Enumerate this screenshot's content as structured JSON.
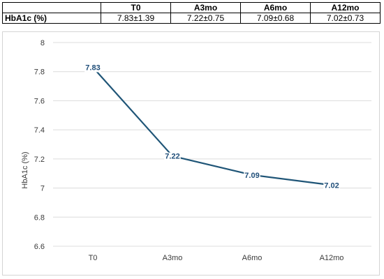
{
  "table": {
    "headers": [
      "",
      "T0",
      "A3mo",
      "A6mo",
      "A12mo"
    ],
    "row_label": "HbA1c (%)",
    "values": [
      "7.83±1.39",
      "7.22±0.75",
      "7.09±0.68",
      "7.02±0.73"
    ]
  },
  "chart_data": {
    "type": "line",
    "categories": [
      "T0",
      "A3mo",
      "A6mo",
      "A12mo"
    ],
    "series": [
      {
        "values": [
          7.83,
          7.22,
          7.09,
          7.02
        ],
        "data_labels": [
          "7.83",
          "7.22",
          "7.09",
          "7.02"
        ]
      }
    ],
    "title": "",
    "xlabel": "",
    "ylabel": "HbA1c (%)",
    "ylim": [
      6.6,
      8
    ],
    "yticks": [
      "6.6",
      "6.8",
      "7",
      "7.2",
      "7.4",
      "7.6",
      "7.8",
      "8"
    ],
    "grid": true,
    "line_color": "#1f5577"
  }
}
